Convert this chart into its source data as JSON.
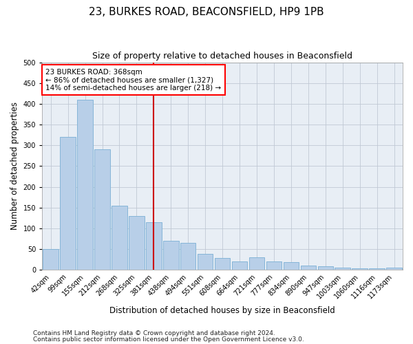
{
  "title": "23, BURKES ROAD, BEACONSFIELD, HP9 1PB",
  "subtitle": "Size of property relative to detached houses in Beaconsfield",
  "xlabel": "Distribution of detached houses by size in Beaconsfield",
  "ylabel": "Number of detached properties",
  "footnote1": "Contains HM Land Registry data © Crown copyright and database right 2024.",
  "footnote2": "Contains public sector information licensed under the Open Government Licence v3.0.",
  "annotation_line1": "23 BURKES ROAD: 368sqm",
  "annotation_line2": "← 86% of detached houses are smaller (1,327)",
  "annotation_line3": "14% of semi-detached houses are larger (218) →",
  "categories": [
    "42sqm",
    "99sqm",
    "155sqm",
    "212sqm",
    "268sqm",
    "325sqm",
    "381sqm",
    "438sqm",
    "494sqm",
    "551sqm",
    "608sqm",
    "664sqm",
    "721sqm",
    "777sqm",
    "834sqm",
    "890sqm",
    "947sqm",
    "1003sqm",
    "1060sqm",
    "1116sqm",
    "1173sqm"
  ],
  "values": [
    50,
    320,
    410,
    290,
    155,
    130,
    115,
    70,
    65,
    38,
    28,
    20,
    30,
    20,
    18,
    10,
    8,
    5,
    3,
    3,
    5
  ],
  "bar_color": "#b8cfe8",
  "bar_edge_color": "#7aafd4",
  "vline_color": "#cc0000",
  "vline_x": 6.0,
  "ylim": [
    0,
    500
  ],
  "yticks": [
    0,
    50,
    100,
    150,
    200,
    250,
    300,
    350,
    400,
    450,
    500
  ],
  "bg_color": "#ffffff",
  "plot_bg_color": "#e8eef5",
  "grid_color": "#c0c8d4",
  "title_fontsize": 11,
  "subtitle_fontsize": 9,
  "axis_label_fontsize": 8.5,
  "tick_fontsize": 7,
  "annotation_fontsize": 7.5,
  "footnote_fontsize": 6.5
}
